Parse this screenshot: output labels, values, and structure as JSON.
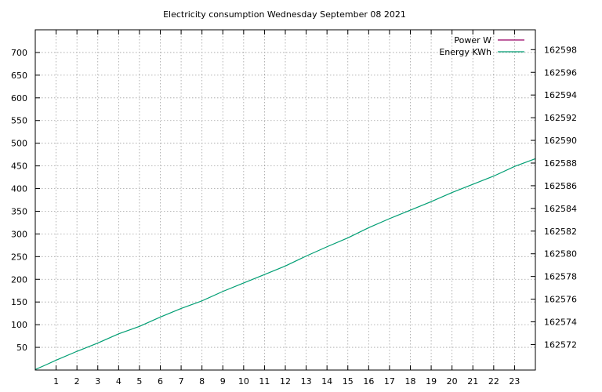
{
  "chart_data": {
    "type": "line",
    "title": "Electricity consumption Wednesday September 08 2021",
    "x_ticks": [
      1,
      2,
      3,
      4,
      5,
      6,
      7,
      8,
      9,
      10,
      11,
      12,
      13,
      14,
      15,
      16,
      17,
      18,
      19,
      20,
      21,
      22,
      23
    ],
    "xlim": [
      0,
      24
    ],
    "y_left_ticks": [
      50,
      100,
      150,
      200,
      250,
      300,
      350,
      400,
      450,
      500,
      550,
      600,
      650,
      700
    ],
    "ylim_left": [
      0,
      750
    ],
    "y_right_ticks": [
      162572,
      162574,
      162576,
      162578,
      162580,
      162582,
      162584,
      162586,
      162588,
      162590,
      162592,
      162594,
      162596,
      162598
    ],
    "ylim_right": [
      162569.75,
      162599.75
    ],
    "grid": true,
    "legend_position": "top-right",
    "series": [
      {
        "name": "Power W",
        "axis": "left",
        "color": "#990066",
        "points": []
      },
      {
        "name": "Energy KWh",
        "axis": "right",
        "color": "#009e73",
        "points": [
          [
            0,
            162569.8
          ],
          [
            0.5,
            162570.2
          ],
          [
            1,
            162570.62
          ],
          [
            2,
            162571.4
          ],
          [
            3,
            162572.13
          ],
          [
            4,
            162572.94
          ],
          [
            5,
            162573.6
          ],
          [
            6,
            162574.42
          ],
          [
            7,
            162575.18
          ],
          [
            8,
            162575.85
          ],
          [
            9,
            162576.68
          ],
          [
            10,
            162577.43
          ],
          [
            11,
            162578.17
          ],
          [
            12,
            162578.92
          ],
          [
            13,
            162579.8
          ],
          [
            14,
            162580.62
          ],
          [
            15,
            162581.4
          ],
          [
            16,
            162582.3
          ],
          [
            17,
            162583.1
          ],
          [
            18,
            162583.85
          ],
          [
            19,
            162584.6
          ],
          [
            20,
            162585.4
          ],
          [
            21,
            162586.13
          ],
          [
            22,
            162586.85
          ],
          [
            23,
            162587.7
          ],
          [
            24,
            162588.38
          ]
        ]
      }
    ]
  }
}
